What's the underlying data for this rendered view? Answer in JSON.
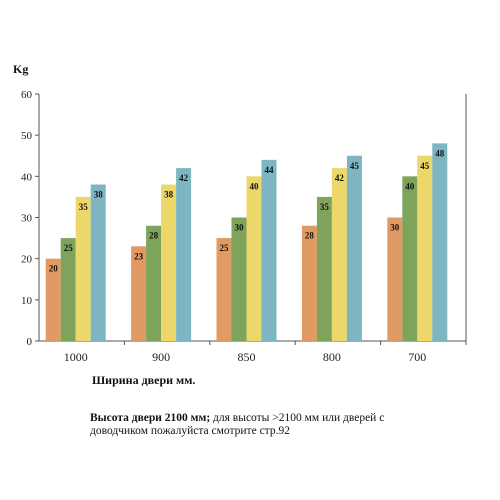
{
  "chart_data": {
    "type": "bar",
    "ylabel": "Kg",
    "xlabel": "Ширина двери мм.",
    "ylim": [
      0,
      60
    ],
    "yticks": [
      0,
      10,
      20,
      30,
      40,
      50,
      60
    ],
    "grid": false,
    "categories": [
      "1000",
      "900",
      "850",
      "800",
      "700"
    ],
    "series": [
      {
        "color": "#e19a63",
        "values": [
          20,
          23,
          25,
          28,
          30
        ]
      },
      {
        "color": "#7ea35a",
        "values": [
          25,
          28,
          30,
          35,
          40
        ]
      },
      {
        "color": "#ecd76a",
        "values": [
          35,
          38,
          40,
          42,
          45
        ]
      },
      {
        "color": "#7db5c3",
        "values": [
          38,
          42,
          44,
          45,
          48
        ]
      }
    ]
  },
  "note": {
    "bold": "Высота двери 2100 мм;",
    "text": " для высоты >2100 мм или дверей с доводчиком пожалуйста смотрите стр.92"
  }
}
